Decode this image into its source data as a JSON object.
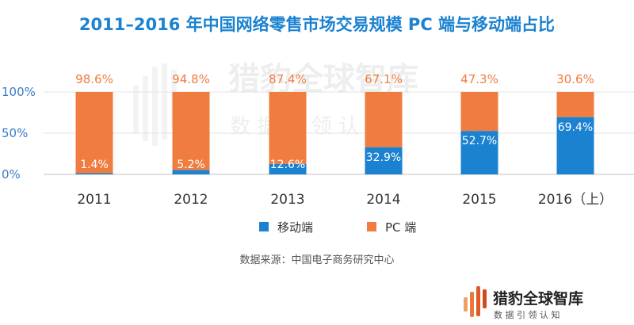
{
  "chart_data": {
    "type": "bar",
    "stacked": true,
    "title": "2011–2016 年中国网络零售市场交易规模 PC 端与移动端占比",
    "categories": [
      "2011",
      "2012",
      "2013",
      "2014",
      "2015",
      "2016（上）"
    ],
    "series": [
      {
        "name": "移动端",
        "color": "#1a82d0",
        "values": [
          1.4,
          5.2,
          12.6,
          32.9,
          52.7,
          69.4
        ],
        "labels": [
          "1.4%",
          "5.2%",
          "12.6%",
          "32.9%",
          "52.7%",
          "69.4%"
        ]
      },
      {
        "name": "PC 端",
        "color": "#f07c40",
        "values": [
          98.6,
          94.8,
          87.4,
          67.1,
          47.3,
          30.6
        ],
        "labels": [
          "98.6%",
          "94.8%",
          "87.4%",
          "67.1%",
          "47.3%",
          "30.6%"
        ]
      }
    ],
    "yticks": [
      "0%",
      "50%",
      "100%"
    ],
    "ylim": [
      0,
      100
    ],
    "legend_position": "bottom-center",
    "source": "数据来源：中国电子商务研究中心"
  },
  "watermark": {
    "name": "猎豹全球智库",
    "tagline": "数 据 引 领 认 知"
  },
  "logo": {
    "name": "猎豹全球智库",
    "tagline": "数 据 引 领 认 知",
    "colors": [
      "#f0a060",
      "#ea7a3c",
      "#e05a28",
      "#d04a20"
    ]
  }
}
